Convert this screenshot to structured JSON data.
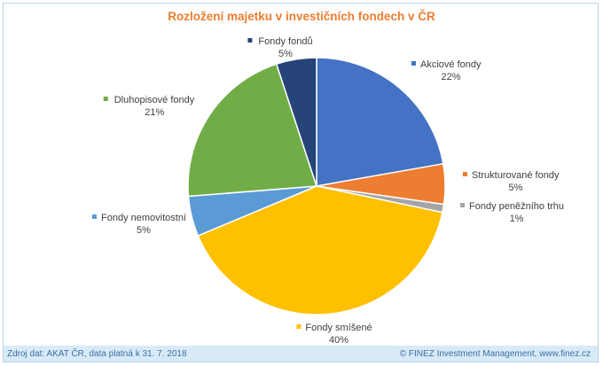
{
  "chart_data": {
    "type": "pie",
    "title": "Rozložení majetku v investičních fondech v ČR",
    "slices": [
      {
        "name": "Akciové fondy",
        "value": 22,
        "label": "22%",
        "color": "#4472c4"
      },
      {
        "name": "Strukturované fondy",
        "value": 5,
        "label": "5%",
        "color": "#ed7d31"
      },
      {
        "name": "Fondy peněžního trhu",
        "value": 1,
        "label": "1%",
        "color": "#a5a5a5"
      },
      {
        "name": "Fondy smíšené",
        "value": 40,
        "label": "40%",
        "color": "#ffc000"
      },
      {
        "name": "Fondy nemovitostní",
        "value": 5,
        "label": "5%",
        "color": "#5b9bd5"
      },
      {
        "name": "Dluhopisové fondy",
        "value": 21,
        "label": "21%",
        "color": "#70ad47"
      },
      {
        "name": "Fondy fondů",
        "value": 5,
        "label": "5%",
        "color": "#264478"
      }
    ]
  },
  "footer": {
    "source": "Zdroj dat: AKAT ČR, data platná k 31. 7. 2018",
    "credit": "© FINEZ Investment Management, www.finez.cz"
  }
}
